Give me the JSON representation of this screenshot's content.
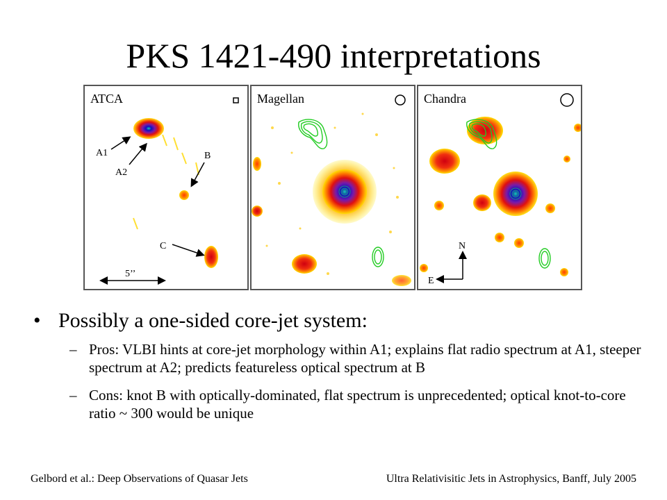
{
  "slide": {
    "title": "PKS 1421-490 interpretations"
  },
  "panels": [
    {
      "label": "ATCA"
    },
    {
      "label": "Magellan"
    },
    {
      "label": "Chandra"
    }
  ],
  "atca_annotations": {
    "a1": "A1",
    "a2": "A2",
    "b": "B",
    "c": "C",
    "scale": "5’’"
  },
  "chandra_compass": {
    "north": "N",
    "east": "E"
  },
  "bullets": {
    "main": "Possibly a one-sided core-jet system:",
    "pros": "Pros: VLBI hints at core-jet morphology within A1; explains flat radio spectrum at A1, steeper spectrum at A2; predicts featureless optical spectrum at B",
    "cons": "Cons: knot B with optically-dominated, flat spectrum is unprecedented; optical knot-to-core ratio ~ 300 would be unique",
    "main_marker": "•",
    "sub_marker": "–"
  },
  "footer": {
    "left": "Gelbord et al.: Deep Observations of Quasar Jets",
    "right": "Ultra Relativisitic Jets in Astrophysics, Banff, July 2005"
  }
}
